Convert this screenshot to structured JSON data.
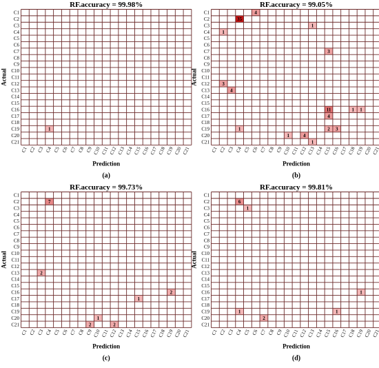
{
  "chart_data": [
    {
      "type": "heatmap",
      "title": "RF.accuracy = 99.98%",
      "caption": "(a)",
      "xlabel": "Prediction",
      "ylabel": "Actual",
      "x_categories": [
        "C1",
        "C2",
        "C3",
        "C4",
        "C5",
        "C6",
        "C7",
        "C8",
        "C9",
        "C10",
        "C11",
        "C12",
        "C13",
        "C14",
        "C15",
        "C16",
        "C17",
        "C18",
        "C19",
        "C20",
        "C21"
      ],
      "y_categories": [
        "C1",
        "C2",
        "C3",
        "C4",
        "C5",
        "C6",
        "C7",
        "C8",
        "C9",
        "C10",
        "C11",
        "C12",
        "C13",
        "C14",
        "C15",
        "C16",
        "C17",
        "C18",
        "C19",
        "C20",
        "C21"
      ],
      "cells": [
        {
          "actual": "C19",
          "predicted": "C4",
          "value": 1
        }
      ]
    },
    {
      "type": "heatmap",
      "title": "RF.accuracy = 99.05%",
      "caption": "(b)",
      "xlabel": "Prediction",
      "ylabel": "Actual",
      "x_categories": [
        "C1",
        "C2",
        "C3",
        "C4",
        "C5",
        "C6",
        "C7",
        "C8",
        "C9",
        "C10",
        "C11",
        "C12",
        "C13",
        "C14",
        "C15",
        "C16",
        "C17",
        "C18",
        "C19",
        "C20",
        "C21"
      ],
      "y_categories": [
        "C1",
        "C2",
        "C3",
        "C4",
        "C5",
        "C6",
        "C7",
        "C8",
        "C9",
        "C10",
        "C11",
        "C12",
        "C13",
        "C14",
        "C15",
        "C16",
        "C17",
        "C18",
        "C19",
        "C20",
        "C21"
      ],
      "cells": [
        {
          "actual": "C1",
          "predicted": "C6",
          "value": 4
        },
        {
          "actual": "C2",
          "predicted": "C4",
          "value": 35
        },
        {
          "actual": "C3",
          "predicted": "C13",
          "value": 1
        },
        {
          "actual": "C4",
          "predicted": "C2",
          "value": 1
        },
        {
          "actual": "C7",
          "predicted": "C15",
          "value": 3
        },
        {
          "actual": "C12",
          "predicted": "C2",
          "value": 3
        },
        {
          "actual": "C13",
          "predicted": "C3",
          "value": 4
        },
        {
          "actual": "C16",
          "predicted": "C15",
          "value": 11
        },
        {
          "actual": "C16",
          "predicted": "C18",
          "value": 1
        },
        {
          "actual": "C16",
          "predicted": "C19",
          "value": 1
        },
        {
          "actual": "C17",
          "predicted": "C15",
          "value": 4
        },
        {
          "actual": "C19",
          "predicted": "C4",
          "value": 1
        },
        {
          "actual": "C19",
          "predicted": "C15",
          "value": 2
        },
        {
          "actual": "C19",
          "predicted": "C16",
          "value": 3
        },
        {
          "actual": "C20",
          "predicted": "C10",
          "value": 1
        },
        {
          "actual": "C20",
          "predicted": "C12",
          "value": 4
        },
        {
          "actual": "C21",
          "predicted": "C13",
          "value": 1
        }
      ]
    },
    {
      "type": "heatmap",
      "title": "RF.accuracy = 99.73%",
      "caption": "(c)",
      "xlabel": "Prediction",
      "ylabel": "Actual",
      "x_categories": [
        "C1",
        "C2",
        "C3",
        "C4",
        "C5",
        "C6",
        "C7",
        "C8",
        "C9",
        "C10",
        "C11",
        "C12",
        "C13",
        "C14",
        "C15",
        "C16",
        "C17",
        "C18",
        "C19",
        "C20",
        "C21"
      ],
      "y_categories": [
        "C1",
        "C2",
        "C3",
        "C4",
        "C5",
        "C6",
        "C7",
        "C8",
        "C9",
        "C10",
        "C11",
        "C12",
        "C13",
        "C14",
        "C15",
        "C16",
        "C17",
        "C18",
        "C19",
        "C20",
        "C21"
      ],
      "cells": [
        {
          "actual": "C2",
          "predicted": "C4",
          "value": 7
        },
        {
          "actual": "C13",
          "predicted": "C3",
          "value": 2
        },
        {
          "actual": "C16",
          "predicted": "C19",
          "value": 2
        },
        {
          "actual": "C17",
          "predicted": "C15",
          "value": 1
        },
        {
          "actual": "C20",
          "predicted": "C10",
          "value": 1
        },
        {
          "actual": "C21",
          "predicted": "C9",
          "value": 2
        },
        {
          "actual": "C21",
          "predicted": "C12",
          "value": 2
        }
      ]
    },
    {
      "type": "heatmap",
      "title": "RF.accuracy = 99.81%",
      "caption": "(d)",
      "xlabel": "Prediction",
      "ylabel": "Actual",
      "x_categories": [
        "C1",
        "C2",
        "C3",
        "C4",
        "C5",
        "C6",
        "C7",
        "C8",
        "C9",
        "C10",
        "C11",
        "C12",
        "C13",
        "C14",
        "C15",
        "C16",
        "C17",
        "C18",
        "C19",
        "C20",
        "C21"
      ],
      "y_categories": [
        "C1",
        "C2",
        "C3",
        "C4",
        "C5",
        "C6",
        "C7",
        "C8",
        "C9",
        "C10",
        "C11",
        "C12",
        "C13",
        "C14",
        "C15",
        "C16",
        "C17",
        "C18",
        "C19",
        "C20",
        "C21"
      ],
      "cells": [
        {
          "actual": "C2",
          "predicted": "C4",
          "value": 6
        },
        {
          "actual": "C3",
          "predicted": "C5",
          "value": 1
        },
        {
          "actual": "C16",
          "predicted": "C19",
          "value": 1
        },
        {
          "actual": "C19",
          "predicted": "C4",
          "value": 1
        },
        {
          "actual": "C19",
          "predicted": "C16",
          "value": 1
        },
        {
          "actual": "C20",
          "predicted": "C7",
          "value": 2
        }
      ]
    }
  ]
}
